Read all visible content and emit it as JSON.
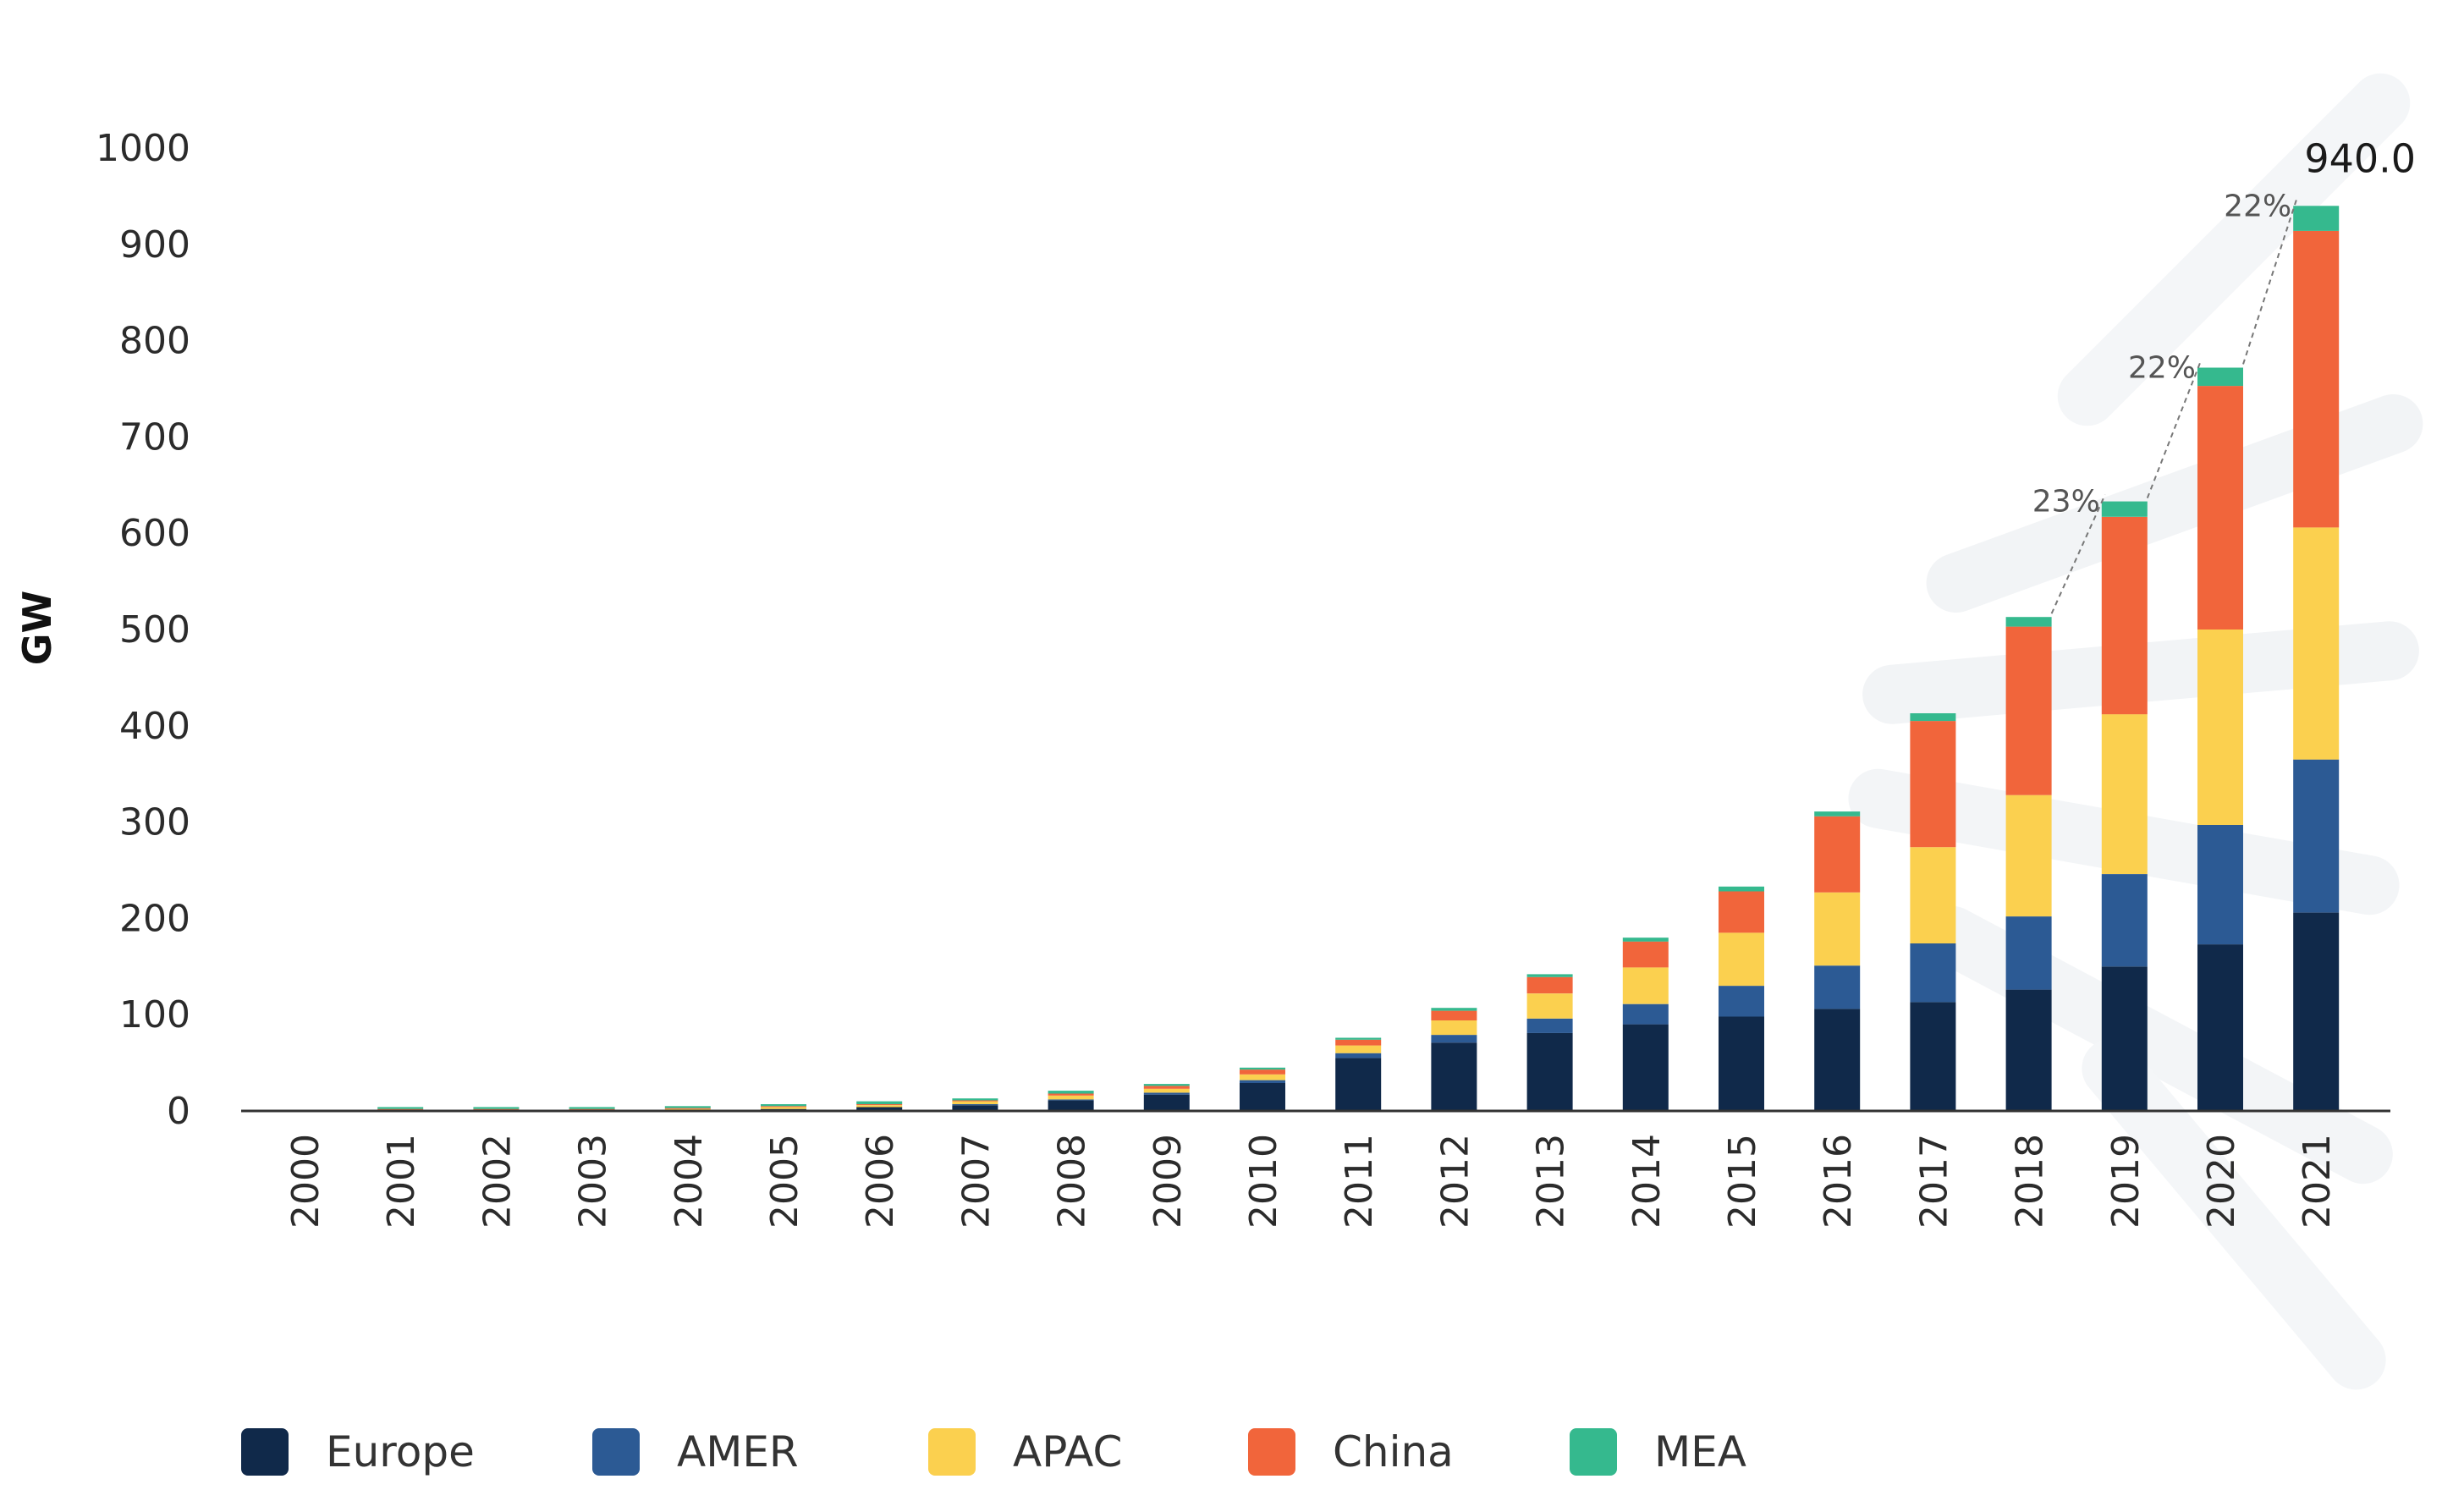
{
  "chart_data": {
    "type": "bar",
    "stacked": true,
    "title": "",
    "xlabel": "",
    "ylabel": "GW",
    "ylim": [
      0,
      1000
    ],
    "yticks": [
      0,
      100,
      200,
      300,
      400,
      500,
      600,
      700,
      800,
      900,
      1000
    ],
    "categories": [
      "2000",
      "2001",
      "2002",
      "2003",
      "2004",
      "2005",
      "2006",
      "2007",
      "2008",
      "2009",
      "2010",
      "2011",
      "2012",
      "2013",
      "2014",
      "2015",
      "2016",
      "2017",
      "2018",
      "2019",
      "2020",
      "2021"
    ],
    "series": [
      {
        "name": "Europe",
        "color": "#10294a",
        "values": [
          0,
          0,
          0,
          0,
          1,
          2,
          4,
          6,
          11,
          17,
          29,
          55,
          71,
          81,
          90,
          98,
          106,
          113,
          126,
          150,
          173,
          206
        ]
      },
      {
        "name": "AMER",
        "color": "#2c5a94",
        "values": [
          0,
          0,
          0,
          0,
          0,
          0,
          0,
          1,
          1,
          2,
          3,
          5,
          8,
          15,
          21,
          32,
          45,
          61,
          76,
          96,
          124,
          159
        ]
      },
      {
        "name": "APAC",
        "color": "#fbd04f",
        "values": [
          0,
          1,
          1,
          1,
          1,
          2,
          2,
          3,
          4,
          4,
          6,
          8,
          15,
          26,
          38,
          55,
          76,
          100,
          126,
          166,
          203,
          241
        ]
      },
      {
        "name": "China",
        "color": "#f1653b",
        "values": [
          1,
          1,
          1,
          1,
          1,
          1,
          1,
          1,
          2,
          3,
          5,
          6,
          10,
          17,
          27,
          43,
          79,
          131,
          175,
          205,
          253,
          308
        ]
      },
      {
        "name": "MEA",
        "color": "#35b98e",
        "values": [
          0,
          2,
          2,
          2,
          2,
          2,
          3,
          2,
          3,
          2,
          2,
          2,
          3,
          3,
          4,
          5,
          5,
          8,
          10,
          16,
          19,
          26
        ]
      }
    ],
    "annotations": [
      {
        "text": "940.0",
        "category": "2021",
        "value": 940
      },
      {
        "text": "23%",
        "from": "2018",
        "to": "2019"
      },
      {
        "text": "22%",
        "from": "2019",
        "to": "2020"
      },
      {
        "text": "22%",
        "from": "2020",
        "to": "2021"
      }
    ],
    "legend_position": "bottom"
  }
}
